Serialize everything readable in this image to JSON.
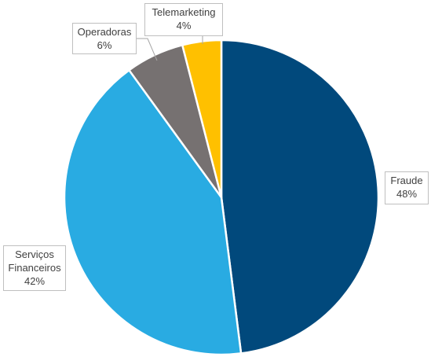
{
  "chart_data": {
    "type": "pie",
    "title": "",
    "slices": [
      {
        "label": "Fraude",
        "value": 48,
        "value_label": "48%",
        "color": "#01497c"
      },
      {
        "label": "Serviços Financeiros",
        "label_lines": [
          "Serviços",
          "Financeiros"
        ],
        "value": 42,
        "value_label": "42%",
        "color": "#29abe2"
      },
      {
        "label": "Operadoras",
        "value": 6,
        "value_label": "6%",
        "color": "#767171"
      },
      {
        "label": "Telemarketing",
        "value": 4,
        "value_label": "4%",
        "color": "#ffc000"
      }
    ],
    "start_angle": "12 o'clock",
    "direction": "clockwise",
    "legend": "none",
    "data_labels": "callouts"
  }
}
